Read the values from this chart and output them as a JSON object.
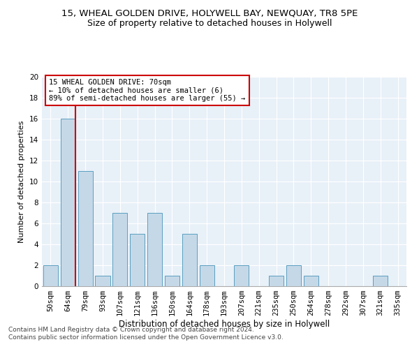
{
  "title1": "15, WHEAL GOLDEN DRIVE, HOLYWELL BAY, NEWQUAY, TR8 5PE",
  "title2": "Size of property relative to detached houses in Holywell",
  "xlabel": "Distribution of detached houses by size in Holywell",
  "ylabel": "Number of detached properties",
  "annotation_line1": "15 WHEAL GOLDEN DRIVE: 70sqm",
  "annotation_line2": "← 10% of detached houses are smaller (6)",
  "annotation_line3": "89% of semi-detached houses are larger (55) →",
  "footer1": "Contains HM Land Registry data © Crown copyright and database right 2024.",
  "footer2": "Contains public sector information licensed under the Open Government Licence v3.0.",
  "bin_labels": [
    "50sqm",
    "64sqm",
    "79sqm",
    "93sqm",
    "107sqm",
    "121sqm",
    "136sqm",
    "150sqm",
    "164sqm",
    "178sqm",
    "193sqm",
    "207sqm",
    "221sqm",
    "235sqm",
    "250sqm",
    "264sqm",
    "278sqm",
    "292sqm",
    "307sqm",
    "321sqm",
    "335sqm"
  ],
  "bar_values": [
    2,
    16,
    11,
    1,
    7,
    5,
    7,
    1,
    5,
    2,
    0,
    2,
    0,
    1,
    2,
    1,
    0,
    0,
    0,
    1,
    0
  ],
  "bar_color": "#c5d8e8",
  "bar_edge_color": "#5a9fc0",
  "vline_color": "#cc0000",
  "vline_x": 1.45,
  "ylim": [
    0,
    20
  ],
  "yticks": [
    0,
    2,
    4,
    6,
    8,
    10,
    12,
    14,
    16,
    18,
    20
  ],
  "annotation_box_color": "#cc0000",
  "bg_color": "#e8f0f8",
  "grid_color": "#c8d8e8",
  "title1_fontsize": 9.5,
  "title2_fontsize": 9,
  "xlabel_fontsize": 8.5,
  "ylabel_fontsize": 8,
  "tick_fontsize": 7.5,
  "ann_fontsize": 7.5,
  "footer_fontsize": 6.5
}
